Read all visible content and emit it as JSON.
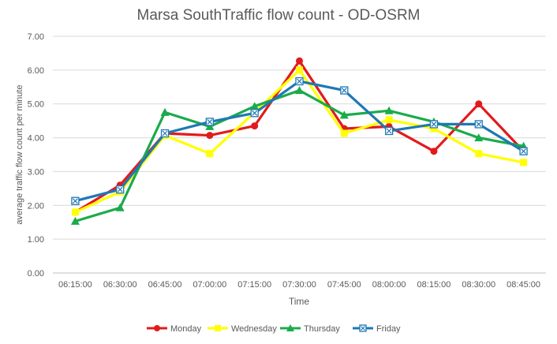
{
  "chart_data": {
    "type": "line",
    "title": "Marsa SouthTraffic flow count - OD-OSRM",
    "xlabel": "Time",
    "ylabel": "average traffic flow count per minute",
    "ylim": [
      0,
      7
    ],
    "yticks": [
      "0.00",
      "1.00",
      "2.00",
      "3.00",
      "4.00",
      "5.00",
      "6.00",
      "7.00"
    ],
    "grid": true,
    "legend": "bottom",
    "categories": [
      "06:15:00",
      "06:30:00",
      "06:45:00",
      "07:00:00",
      "07:15:00",
      "07:30:00",
      "07:45:00",
      "08:00:00",
      "08:15:00",
      "08:30:00",
      "08:45:00"
    ],
    "series": [
      {
        "name": "Monday",
        "color": "#e31a1c",
        "marker": "circle",
        "values": [
          1.8,
          2.6,
          4.13,
          4.07,
          4.35,
          6.27,
          4.27,
          4.33,
          3.6,
          5.0,
          3.6
        ]
      },
      {
        "name": "Wednesday",
        "color": "#ffff00",
        "marker": "square",
        "values": [
          1.8,
          2.4,
          4.07,
          3.53,
          4.75,
          6.0,
          4.13,
          4.53,
          4.27,
          3.53,
          3.27
        ]
      },
      {
        "name": "Thursday",
        "color": "#1aab4b",
        "marker": "triangle",
        "values": [
          1.53,
          1.93,
          4.75,
          4.33,
          4.93,
          5.4,
          4.67,
          4.8,
          4.47,
          4.0,
          3.75
        ]
      },
      {
        "name": "Friday",
        "color": "#1f78b4",
        "marker": "boxx",
        "values": [
          2.13,
          2.47,
          4.13,
          4.47,
          4.73,
          5.67,
          5.4,
          4.2,
          4.4,
          4.4,
          3.6
        ]
      }
    ]
  }
}
